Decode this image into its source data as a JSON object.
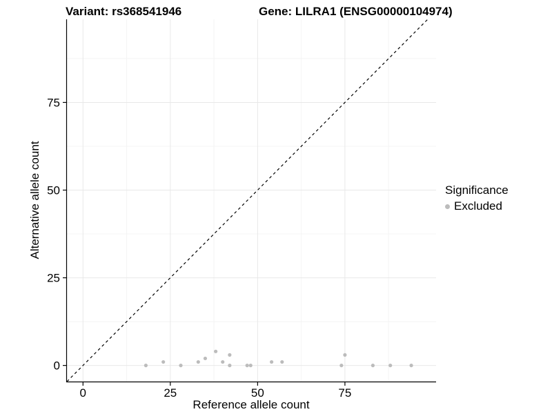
{
  "header": {
    "left_title": "Variant: rs368541946",
    "right_title": "Gene: LILRA1 (ENSG00000104974)"
  },
  "chart_data": {
    "type": "scatter",
    "title": "Variant: rs368541946 — Gene: LILRA1 (ENSG00000104974)",
    "xlabel": "Reference allele count",
    "ylabel": "Alternative allele count",
    "xlim": [
      -4.6,
      101.1
    ],
    "ylim": [
      -4.6,
      98.7
    ],
    "x_ticks": [
      0,
      25,
      50,
      75
    ],
    "y_ticks": [
      0,
      25,
      50,
      75
    ],
    "x_minor_ticks": [
      12.5,
      37.5,
      62.5,
      87.5
    ],
    "y_minor_ticks": [
      12.5,
      37.5,
      62.5,
      87.5
    ],
    "grid": "major and minor gridlines on white background",
    "identity_line": {
      "slope": 1,
      "intercept": 0,
      "style": "dashed",
      "color": "#000000"
    },
    "series": [
      {
        "name": "Excluded",
        "color": "#bcbcbc",
        "marker": "circle",
        "points": [
          [
            18,
            0
          ],
          [
            23,
            1
          ],
          [
            28,
            0
          ],
          [
            33,
            1
          ],
          [
            35,
            2
          ],
          [
            38,
            4
          ],
          [
            40,
            1
          ],
          [
            42,
            3
          ],
          [
            42,
            0
          ],
          [
            47,
            0
          ],
          [
            48,
            0
          ],
          [
            54,
            1
          ],
          [
            57,
            1
          ],
          [
            74,
            0
          ],
          [
            75,
            3
          ],
          [
            83,
            0
          ],
          [
            88,
            0
          ],
          [
            94,
            0
          ]
        ]
      }
    ],
    "legend": {
      "title": "Significance",
      "position": "right",
      "items": [
        {
          "label": "Excluded",
          "color": "#bcbcbc"
        }
      ]
    },
    "colors": {
      "major_grid": "#e8e8e8",
      "minor_grid": "#f4f4f4",
      "axis_line": "#000000",
      "tick_label": "#000000"
    }
  }
}
